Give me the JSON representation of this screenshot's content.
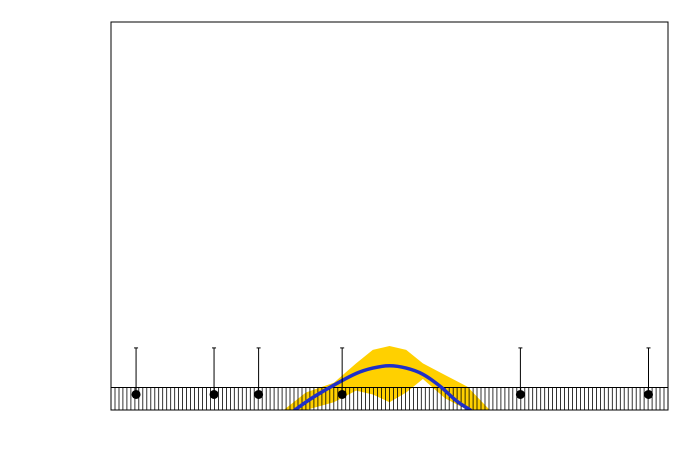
{
  "chart_data": {
    "type": "scatter",
    "title": "",
    "xlabel": "",
    "ylabel": "",
    "grid": false,
    "legend": "none",
    "xlim": [
      0,
      1
    ],
    "ylim": [
      0,
      1
    ],
    "points": [
      {
        "x": 0.045,
        "y": 0.04,
        "err_up": 0.12
      },
      {
        "x": 0.185,
        "y": 0.04,
        "err_up": 0.12
      },
      {
        "x": 0.265,
        "y": 0.04,
        "err_up": 0.12
      },
      {
        "x": 0.415,
        "y": 0.04,
        "err_up": 0.12
      },
      {
        "x": 0.735,
        "y": 0.04,
        "err_up": 0.12
      },
      {
        "x": 0.965,
        "y": 0.04,
        "err_up": 0.12
      }
    ],
    "fit_curve": [
      {
        "x": 0.33,
        "y": 0.0
      },
      {
        "x": 0.36,
        "y": 0.03
      },
      {
        "x": 0.4,
        "y": 0.064
      },
      {
        "x": 0.44,
        "y": 0.094
      },
      {
        "x": 0.47,
        "y": 0.108
      },
      {
        "x": 0.5,
        "y": 0.114
      },
      {
        "x": 0.53,
        "y": 0.108
      },
      {
        "x": 0.56,
        "y": 0.092
      },
      {
        "x": 0.59,
        "y": 0.062
      },
      {
        "x": 0.62,
        "y": 0.024
      },
      {
        "x": 0.645,
        "y": 0.0
      }
    ],
    "uncertainty_band": [
      {
        "x": 0.31,
        "low": 0.0,
        "high": 0.0
      },
      {
        "x": 0.35,
        "low": 0.0,
        "high": 0.045
      },
      {
        "x": 0.4,
        "low": 0.02,
        "high": 0.07
      },
      {
        "x": 0.44,
        "low": 0.05,
        "high": 0.12
      },
      {
        "x": 0.47,
        "low": 0.04,
        "high": 0.155
      },
      {
        "x": 0.5,
        "low": 0.02,
        "high": 0.165
      },
      {
        "x": 0.53,
        "low": 0.045,
        "high": 0.155
      },
      {
        "x": 0.56,
        "low": 0.08,
        "high": 0.12
      },
      {
        "x": 0.6,
        "low": 0.03,
        "high": 0.09
      },
      {
        "x": 0.64,
        "low": 0.0,
        "high": 0.06
      },
      {
        "x": 0.68,
        "low": 0.0,
        "high": 0.0
      }
    ],
    "rug_band": {
      "y_top": 0.058,
      "count": 140
    },
    "colors": {
      "points": "#000000",
      "curve": "#1f2fc8",
      "band": "#ffd000",
      "frame": "#000000"
    }
  }
}
